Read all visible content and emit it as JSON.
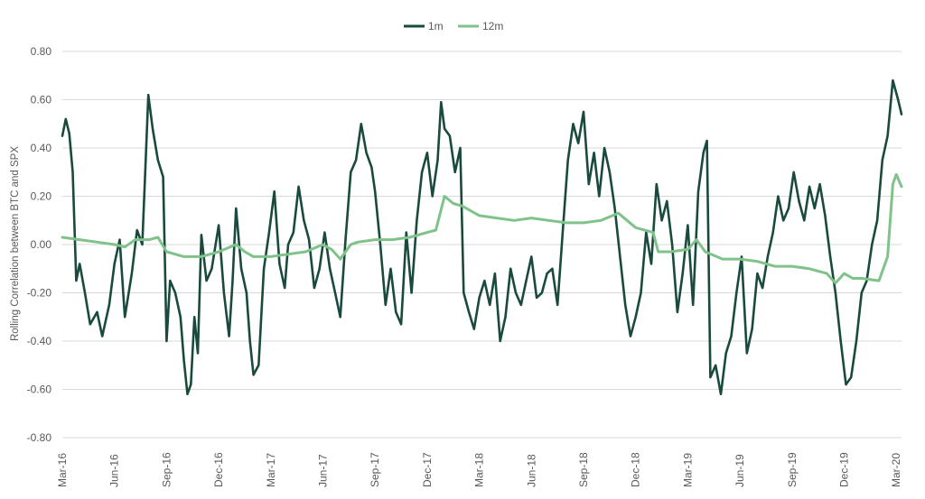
{
  "chart_data": {
    "type": "line",
    "title": "",
    "xlabel": "",
    "ylabel": "Rolling Correlation between BTC and SPX",
    "ylim": [
      -0.8,
      0.8
    ],
    "yticks": [
      "0.80",
      "0.60",
      "0.40",
      "0.20",
      "0.00",
      "-0.20",
      "-0.40",
      "-0.60",
      "-0.80"
    ],
    "ytick_values": [
      0.8,
      0.6,
      0.4,
      0.2,
      0.0,
      -0.2,
      -0.4,
      -0.6,
      -0.8
    ],
    "grid": true,
    "legend_position": "top-center",
    "xticks": [
      "Mar-16",
      "Jun-16",
      "Sep-16",
      "Dec-16",
      "Mar-17",
      "Jun-17",
      "Sep-17",
      "Dec-17",
      "Mar-18",
      "Jun-18",
      "Sep-18",
      "Dec-18",
      "Mar-19",
      "Jun-19",
      "Sep-19",
      "Dec-19",
      "Mar-20"
    ],
    "x_unit": "months since Mar-16",
    "series": [
      {
        "name": "1m",
        "color": "#1a4a3e",
        "points": [
          [
            0.0,
            0.45
          ],
          [
            0.2,
            0.52
          ],
          [
            0.4,
            0.46
          ],
          [
            0.6,
            0.3
          ],
          [
            0.8,
            -0.15
          ],
          [
            1.0,
            -0.08
          ],
          [
            1.3,
            -0.2
          ],
          [
            1.6,
            -0.33
          ],
          [
            2.0,
            -0.28
          ],
          [
            2.3,
            -0.38
          ],
          [
            2.7,
            -0.25
          ],
          [
            3.0,
            -0.08
          ],
          [
            3.3,
            0.02
          ],
          [
            3.6,
            -0.3
          ],
          [
            4.0,
            -0.12
          ],
          [
            4.3,
            0.06
          ],
          [
            4.6,
            0.0
          ],
          [
            4.8,
            0.35
          ],
          [
            4.95,
            0.62
          ],
          [
            5.2,
            0.48
          ],
          [
            5.5,
            0.35
          ],
          [
            5.8,
            0.28
          ],
          [
            6.0,
            -0.4
          ],
          [
            6.2,
            -0.15
          ],
          [
            6.5,
            -0.2
          ],
          [
            6.8,
            -0.3
          ],
          [
            7.0,
            -0.48
          ],
          [
            7.2,
            -0.62
          ],
          [
            7.4,
            -0.58
          ],
          [
            7.6,
            -0.3
          ],
          [
            7.8,
            -0.45
          ],
          [
            8.0,
            0.04
          ],
          [
            8.3,
            -0.15
          ],
          [
            8.6,
            -0.1
          ],
          [
            9.0,
            0.08
          ],
          [
            9.3,
            -0.2
          ],
          [
            9.6,
            -0.38
          ],
          [
            9.8,
            -0.15
          ],
          [
            10.0,
            0.15
          ],
          [
            10.3,
            -0.1
          ],
          [
            10.6,
            -0.2
          ],
          [
            10.8,
            -0.4
          ],
          [
            11.0,
            -0.54
          ],
          [
            11.3,
            -0.5
          ],
          [
            11.6,
            -0.1
          ],
          [
            11.9,
            0.05
          ],
          [
            12.2,
            0.22
          ],
          [
            12.5,
            -0.08
          ],
          [
            12.8,
            -0.18
          ],
          [
            13.0,
            0.0
          ],
          [
            13.3,
            0.05
          ],
          [
            13.6,
            0.24
          ],
          [
            13.9,
            0.1
          ],
          [
            14.2,
            0.02
          ],
          [
            14.5,
            -0.18
          ],
          [
            14.8,
            -0.1
          ],
          [
            15.1,
            0.05
          ],
          [
            15.4,
            -0.1
          ],
          [
            15.7,
            -0.2
          ],
          [
            16.0,
            -0.3
          ],
          [
            16.3,
            0.02
          ],
          [
            16.6,
            0.3
          ],
          [
            16.9,
            0.35
          ],
          [
            17.2,
            0.5
          ],
          [
            17.5,
            0.38
          ],
          [
            17.8,
            0.32
          ],
          [
            18.0,
            0.22
          ],
          [
            18.3,
            0.0
          ],
          [
            18.6,
            -0.25
          ],
          [
            18.9,
            -0.1
          ],
          [
            19.2,
            -0.28
          ],
          [
            19.5,
            -0.33
          ],
          [
            19.8,
            0.05
          ],
          [
            20.1,
            -0.2
          ],
          [
            20.4,
            0.1
          ],
          [
            20.7,
            0.3
          ],
          [
            21.0,
            0.38
          ],
          [
            21.3,
            0.2
          ],
          [
            21.6,
            0.35
          ],
          [
            21.8,
            0.59
          ],
          [
            22.0,
            0.48
          ],
          [
            22.3,
            0.45
          ],
          [
            22.6,
            0.3
          ],
          [
            22.9,
            0.4
          ],
          [
            23.1,
            -0.2
          ],
          [
            23.4,
            -0.28
          ],
          [
            23.7,
            -0.35
          ],
          [
            24.0,
            -0.22
          ],
          [
            24.3,
            -0.15
          ],
          [
            24.6,
            -0.25
          ],
          [
            24.9,
            -0.12
          ],
          [
            25.2,
            -0.4
          ],
          [
            25.5,
            -0.3
          ],
          [
            25.8,
            -0.1
          ],
          [
            26.1,
            -0.2
          ],
          [
            26.4,
            -0.25
          ],
          [
            26.7,
            -0.15
          ],
          [
            27.0,
            -0.05
          ],
          [
            27.3,
            -0.22
          ],
          [
            27.6,
            -0.2
          ],
          [
            27.9,
            -0.12
          ],
          [
            28.2,
            -0.1
          ],
          [
            28.5,
            -0.25
          ],
          [
            28.8,
            0.05
          ],
          [
            29.1,
            0.35
          ],
          [
            29.4,
            0.5
          ],
          [
            29.7,
            0.42
          ],
          [
            30.0,
            0.55
          ],
          [
            30.3,
            0.25
          ],
          [
            30.6,
            0.38
          ],
          [
            30.9,
            0.2
          ],
          [
            31.2,
            0.4
          ],
          [
            31.5,
            0.3
          ],
          [
            31.8,
            0.15
          ],
          [
            32.1,
            -0.05
          ],
          [
            32.4,
            -0.25
          ],
          [
            32.7,
            -0.38
          ],
          [
            33.0,
            -0.3
          ],
          [
            33.3,
            -0.2
          ],
          [
            33.6,
            0.05
          ],
          [
            33.9,
            -0.08
          ],
          [
            34.2,
            0.25
          ],
          [
            34.5,
            0.1
          ],
          [
            34.8,
            0.18
          ],
          [
            35.1,
            0.0
          ],
          [
            35.4,
            -0.28
          ],
          [
            35.7,
            -0.12
          ],
          [
            36.0,
            0.08
          ],
          [
            36.3,
            -0.25
          ],
          [
            36.6,
            0.22
          ],
          [
            36.9,
            0.38
          ],
          [
            37.1,
            0.43
          ],
          [
            37.3,
            -0.55
          ],
          [
            37.6,
            -0.5
          ],
          [
            37.9,
            -0.62
          ],
          [
            38.2,
            -0.45
          ],
          [
            38.5,
            -0.38
          ],
          [
            38.8,
            -0.2
          ],
          [
            39.1,
            -0.05
          ],
          [
            39.4,
            -0.45
          ],
          [
            39.7,
            -0.35
          ],
          [
            40.0,
            -0.12
          ],
          [
            40.3,
            -0.18
          ],
          [
            40.6,
            -0.05
          ],
          [
            40.9,
            0.05
          ],
          [
            41.2,
            0.2
          ],
          [
            41.5,
            0.1
          ],
          [
            41.8,
            0.15
          ],
          [
            42.1,
            0.3
          ],
          [
            42.4,
            0.18
          ],
          [
            42.7,
            0.1
          ],
          [
            43.0,
            0.24
          ],
          [
            43.3,
            0.15
          ],
          [
            43.6,
            0.25
          ],
          [
            43.9,
            0.12
          ],
          [
            44.2,
            -0.05
          ],
          [
            44.5,
            -0.2
          ],
          [
            44.8,
            -0.4
          ],
          [
            45.1,
            -0.58
          ],
          [
            45.4,
            -0.55
          ],
          [
            45.7,
            -0.4
          ],
          [
            46.0,
            -0.2
          ],
          [
            46.3,
            -0.15
          ],
          [
            46.6,
            0.0
          ],
          [
            46.9,
            0.1
          ],
          [
            47.2,
            0.35
          ],
          [
            47.5,
            0.45
          ],
          [
            47.8,
            0.68
          ],
          [
            48.1,
            0.6
          ],
          [
            48.3,
            0.54
          ]
        ]
      },
      {
        "name": "12m",
        "color": "#7fc28a",
        "points": [
          [
            0.0,
            0.03
          ],
          [
            1.0,
            0.02
          ],
          [
            2.0,
            0.01
          ],
          [
            3.0,
            0.0
          ],
          [
            3.6,
            -0.01
          ],
          [
            4.2,
            0.02
          ],
          [
            5.0,
            0.02
          ],
          [
            5.5,
            0.03
          ],
          [
            6.0,
            -0.03
          ],
          [
            7.0,
            -0.05
          ],
          [
            8.0,
            -0.05
          ],
          [
            9.0,
            -0.03
          ],
          [
            10.0,
            0.0
          ],
          [
            10.5,
            -0.03
          ],
          [
            11.0,
            -0.05
          ],
          [
            12.0,
            -0.05
          ],
          [
            13.0,
            -0.04
          ],
          [
            14.0,
            -0.03
          ],
          [
            15.0,
            0.0
          ],
          [
            15.5,
            -0.02
          ],
          [
            16.0,
            -0.06
          ],
          [
            16.6,
            0.0
          ],
          [
            17.0,
            0.01
          ],
          [
            18.0,
            0.02
          ],
          [
            19.0,
            0.02
          ],
          [
            20.0,
            0.03
          ],
          [
            21.0,
            0.05
          ],
          [
            21.5,
            0.06
          ],
          [
            22.0,
            0.2
          ],
          [
            22.5,
            0.17
          ],
          [
            23.0,
            0.16
          ],
          [
            24.0,
            0.12
          ],
          [
            25.0,
            0.11
          ],
          [
            26.0,
            0.1
          ],
          [
            27.0,
            0.11
          ],
          [
            28.0,
            0.1
          ],
          [
            29.0,
            0.09
          ],
          [
            30.0,
            0.09
          ],
          [
            31.0,
            0.1
          ],
          [
            32.0,
            0.13
          ],
          [
            33.0,
            0.07
          ],
          [
            34.0,
            0.05
          ],
          [
            34.3,
            -0.03
          ],
          [
            35.0,
            -0.03
          ],
          [
            36.0,
            -0.02
          ],
          [
            36.5,
            0.02
          ],
          [
            37.0,
            -0.03
          ],
          [
            38.0,
            -0.06
          ],
          [
            39.0,
            -0.06
          ],
          [
            40.0,
            -0.07
          ],
          [
            41.0,
            -0.09
          ],
          [
            42.0,
            -0.09
          ],
          [
            43.0,
            -0.1
          ],
          [
            44.0,
            -0.12
          ],
          [
            44.5,
            -0.16
          ],
          [
            45.0,
            -0.12
          ],
          [
            45.5,
            -0.14
          ],
          [
            46.0,
            -0.14
          ],
          [
            47.0,
            -0.15
          ],
          [
            47.5,
            -0.05
          ],
          [
            47.8,
            0.25
          ],
          [
            48.0,
            0.29
          ],
          [
            48.3,
            0.24
          ]
        ]
      }
    ]
  }
}
